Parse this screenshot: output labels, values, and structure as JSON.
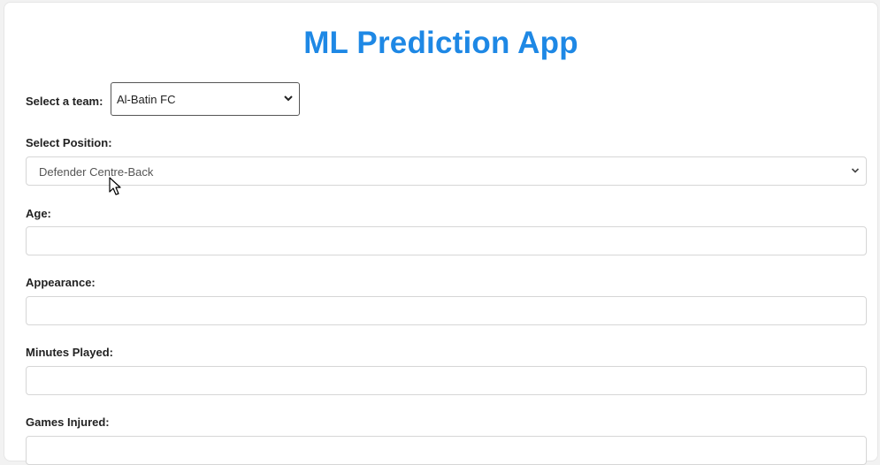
{
  "app": {
    "title": "ML Prediction App"
  },
  "form": {
    "team": {
      "label": "Select a team:",
      "value": "Al-Batin FC"
    },
    "position": {
      "label": "Select Position:",
      "value": "Defender Centre-Back"
    },
    "age": {
      "label": "Age:",
      "value": ""
    },
    "appearance": {
      "label": "Appearance:",
      "value": ""
    },
    "minutes_played": {
      "label": "Minutes Played:",
      "value": ""
    },
    "games_injured": {
      "label": "Games Injured:",
      "value": ""
    }
  },
  "colors": {
    "accent": "#1e88e5",
    "label_text": "#222222",
    "input_border": "#d6d6d6",
    "background": "#f2f2f2"
  },
  "icons": {
    "select_arrow": "chevron-down-icon",
    "pointer": "mouse-cursor-icon"
  }
}
